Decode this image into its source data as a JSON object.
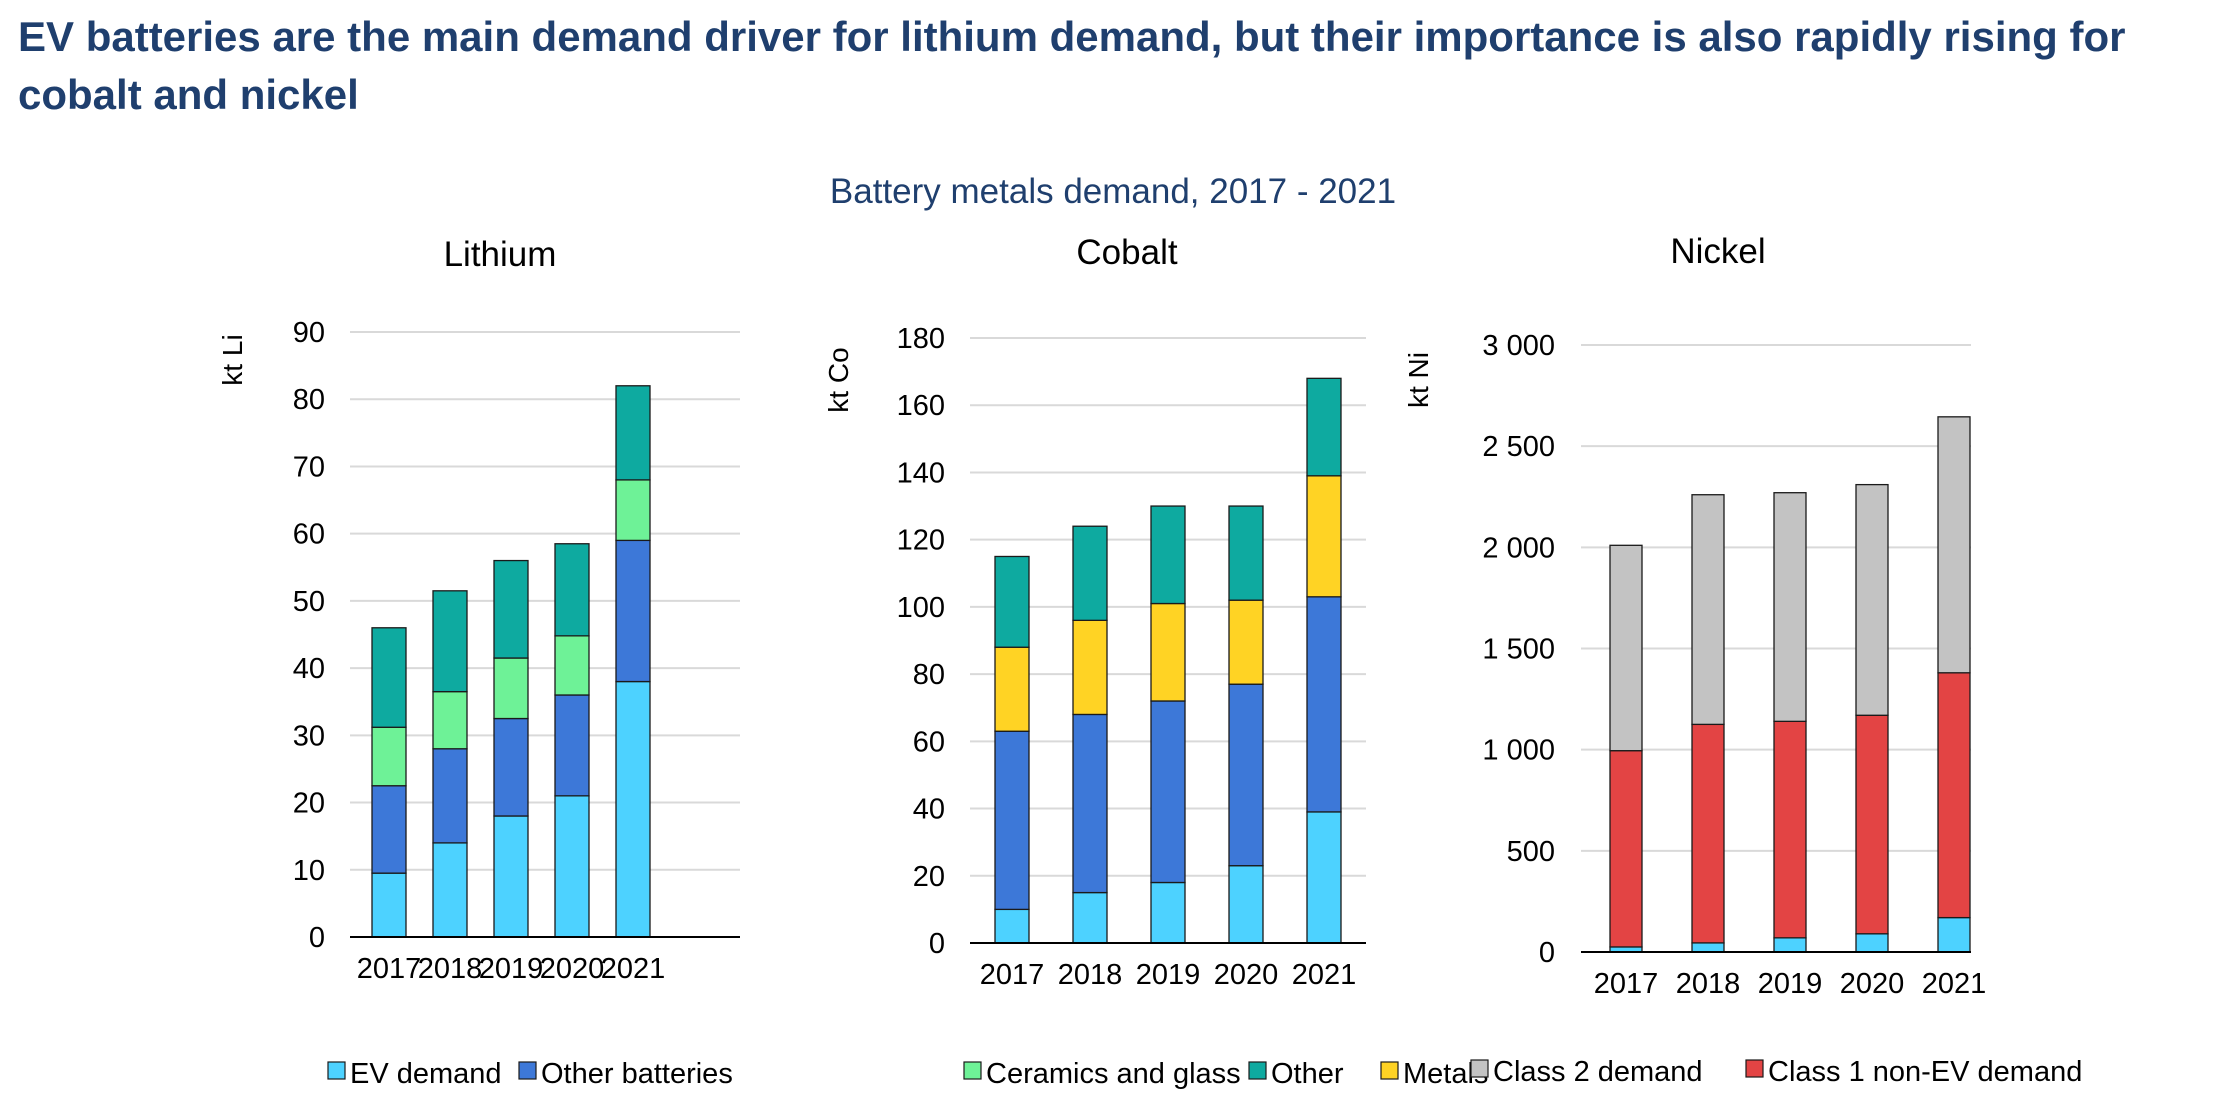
{
  "page": {
    "headline": "EV batteries are the main demand driver for lithium demand, but their importance is also rapidly rising for cobalt and nickel",
    "subtitle": "Battery metals demand, 2017 - 2021"
  },
  "colors": {
    "ev_demand": "#4dd2ff",
    "other_batteries": "#3d78d8",
    "ceramics_and_glass": "#6ef297",
    "other": "#0eaaa0",
    "metals": "#ffd324",
    "class1_non_ev": "#e34444",
    "class2": "#c3c3c3",
    "text": "#000000",
    "title_blue": "#1f3f6e",
    "grid": "#d9d9d9"
  },
  "chart_data": [
    {
      "type": "bar",
      "stacked": true,
      "title": "Lithium",
      "ylabel": "kt Li",
      "ylim": [
        0,
        90
      ],
      "yticks": [
        0,
        10,
        20,
        30,
        40,
        50,
        60,
        70,
        80,
        90
      ],
      "yticklabels": [
        "0",
        "10",
        "20",
        "30",
        "40",
        "50",
        "60",
        "70",
        "80",
        "90"
      ],
      "grid": true,
      "categories": [
        "2017",
        "2018",
        "2019",
        "2020",
        "2021"
      ],
      "series": [
        {
          "name": "EV demand",
          "color": "#4dd2ff",
          "values": [
            9.5,
            14,
            18,
            21,
            38
          ]
        },
        {
          "name": "Other batteries",
          "color": "#3d78d8",
          "values": [
            13,
            14,
            14.5,
            15,
            21
          ]
        },
        {
          "name": "Ceramics and glass",
          "color": "#6ef297",
          "values": [
            8.7,
            8.5,
            9,
            8.8,
            9
          ]
        },
        {
          "name": "Other",
          "color": "#0eaaa0",
          "values": [
            14.8,
            15,
            14.5,
            13.7,
            14
          ]
        }
      ]
    },
    {
      "type": "bar",
      "stacked": true,
      "title": "Cobalt",
      "ylabel": "kt Co",
      "ylim": [
        0,
        180
      ],
      "yticks": [
        0,
        20,
        40,
        60,
        80,
        100,
        120,
        140,
        160,
        180
      ],
      "yticklabels": [
        "0",
        "20",
        "40",
        "60",
        "80",
        "100",
        "120",
        "140",
        "160",
        "180"
      ],
      "grid": true,
      "categories": [
        "2017",
        "2018",
        "2019",
        "2020",
        "2021"
      ],
      "series": [
        {
          "name": "EV demand",
          "color": "#4dd2ff",
          "values": [
            10,
            15,
            18,
            23,
            39
          ]
        },
        {
          "name": "Other batteries",
          "color": "#3d78d8",
          "values": [
            53,
            53,
            54,
            54,
            64
          ]
        },
        {
          "name": "Metals",
          "color": "#ffd324",
          "values": [
            25,
            28,
            29,
            25,
            36
          ]
        },
        {
          "name": "Other",
          "color": "#0eaaa0",
          "values": [
            27,
            28,
            29,
            28,
            29
          ]
        }
      ]
    },
    {
      "type": "bar",
      "stacked": true,
      "title": "Nickel",
      "ylabel": "kt Ni",
      "ylim": [
        0,
        3000
      ],
      "yticks": [
        0,
        500,
        1000,
        1500,
        2000,
        2500,
        3000
      ],
      "yticklabels": [
        "0",
        "500",
        "1 000",
        "1 500",
        "2 000",
        "2 500",
        "3 000"
      ],
      "grid": true,
      "categories": [
        "2017",
        "2018",
        "2019",
        "2020",
        "2021"
      ],
      "series": [
        {
          "name": "EV demand",
          "color": "#4dd2ff",
          "values": [
            25,
            45,
            70,
            90,
            170
          ]
        },
        {
          "name": "Class 1 non-EV demand",
          "color": "#e34444",
          "values": [
            970,
            1080,
            1070,
            1080,
            1210
          ]
        },
        {
          "name": "Class 2 demand",
          "color": "#c3c3c3",
          "values": [
            1015,
            1135,
            1130,
            1140,
            1265
          ]
        }
      ]
    }
  ],
  "legends": {
    "left": [
      {
        "label": "EV demand",
        "color": "#4dd2ff"
      },
      {
        "label": "Other batteries",
        "color": "#3d78d8"
      },
      {
        "label": "Ceramics and glass",
        "color": "#6ef297"
      },
      {
        "label": "Other",
        "color": "#0eaaa0"
      },
      {
        "label": "Metals",
        "color": "#ffd324"
      }
    ],
    "right": [
      {
        "label": "Class 2 demand",
        "color": "#c3c3c3"
      },
      {
        "label": "Class 1 non-EV demand",
        "color": "#e34444"
      }
    ]
  }
}
